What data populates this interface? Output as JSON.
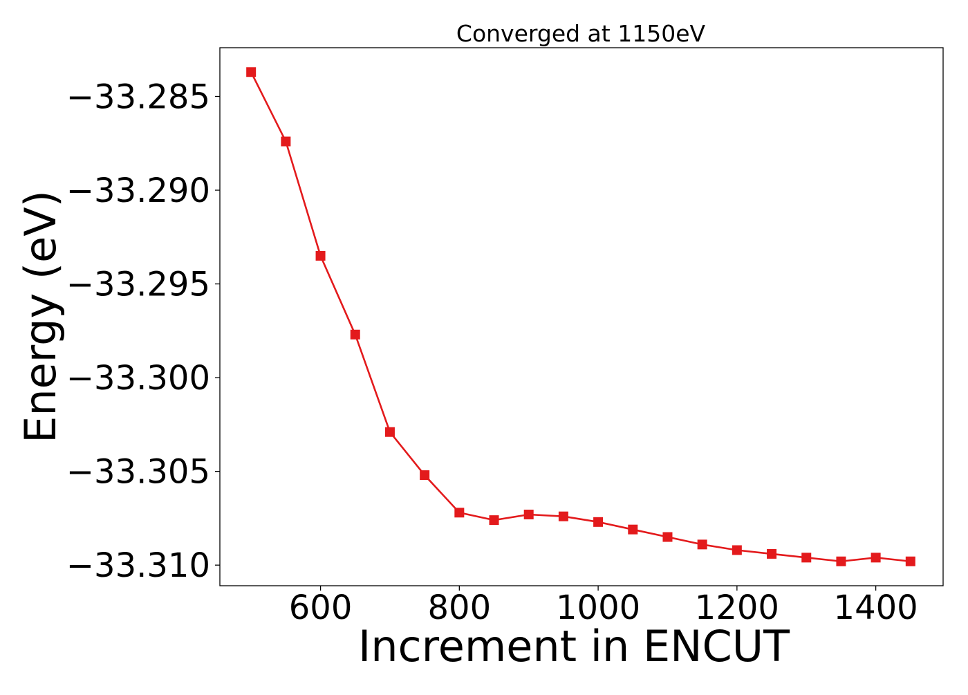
{
  "chart_data": {
    "type": "line",
    "title": "Converged at 1150eV",
    "xlabel": "Increment in ENCUT",
    "ylabel": "Energy (eV)",
    "x": [
      500,
      550,
      600,
      650,
      700,
      750,
      800,
      850,
      900,
      950,
      1000,
      1050,
      1100,
      1150,
      1200,
      1250,
      1300,
      1350,
      1400,
      1450
    ],
    "series": [
      {
        "values": [
          -33.2837,
          -33.2874,
          -33.2935,
          -33.2977,
          -33.3029,
          -33.3052,
          -33.3072,
          -33.3076,
          -33.3073,
          -33.3074,
          -33.3077,
          -33.3081,
          -33.3085,
          -33.3089,
          -33.3092,
          -33.3094,
          -33.3096,
          -33.3098,
          -33.3096,
          -33.3098
        ],
        "color": "#e31a1c",
        "marker": "square"
      }
    ],
    "xlim": [
      455,
      1497
    ],
    "ylim": [
      -33.3111,
      -33.2824
    ],
    "xticks": [
      600,
      800,
      1000,
      1200,
      1400
    ],
    "xtick_labels": [
      "600",
      "800",
      "1000",
      "1200",
      "1400"
    ],
    "yticks": [
      -33.285,
      -33.29,
      -33.295,
      -33.3,
      -33.305,
      -33.31
    ],
    "ytick_labels": [
      "−33.285",
      "−33.290",
      "−33.295",
      "−33.300",
      "−33.305",
      "−33.310"
    ],
    "grid": false,
    "legend": false
  }
}
